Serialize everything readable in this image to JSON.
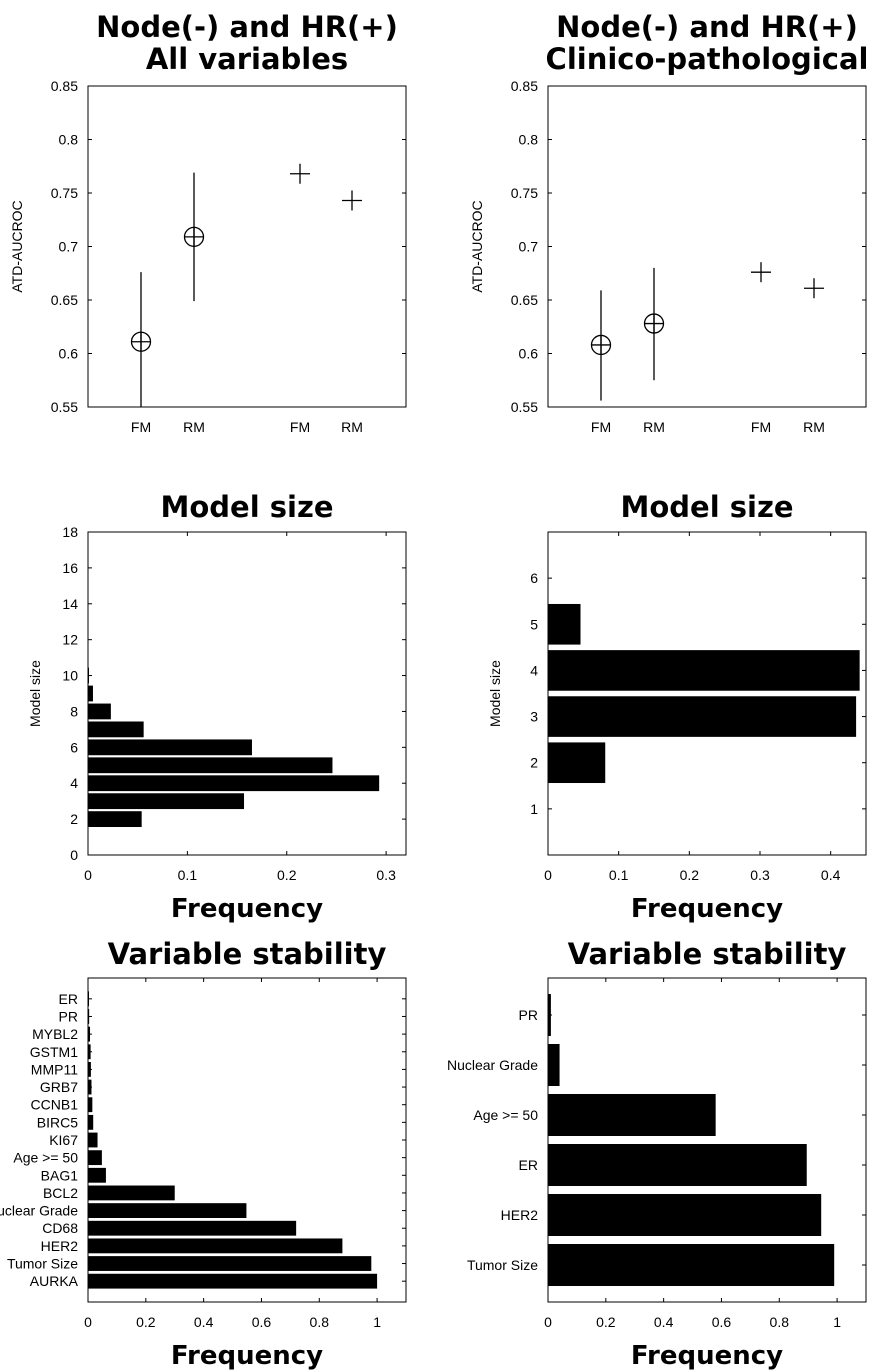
{
  "chart_data": [
    {
      "type": "scatter",
      "title": [
        "Node(-) and HR(+)",
        "All variables"
      ],
      "ylabel": "ATD-AUCROC",
      "xlabel": "",
      "ylim": [
        0.55,
        0.85
      ],
      "yticks": [
        "0.55",
        "0.6",
        "0.65",
        "0.7",
        "0.75",
        "0.8",
        "0.85"
      ],
      "categories": [
        "FM",
        "RM",
        "FM",
        "RM"
      ],
      "points": [
        {
          "label": "FM",
          "y": 0.611,
          "low": 0.55,
          "high": 0.676,
          "marker": "circle-plus"
        },
        {
          "label": "RM",
          "y": 0.709,
          "low": 0.649,
          "high": 0.769,
          "marker": "circle-plus"
        },
        {
          "label": "FM",
          "y": 0.768,
          "marker": "plus"
        },
        {
          "label": "RM",
          "y": 0.743,
          "marker": "plus"
        }
      ]
    },
    {
      "type": "scatter",
      "title": [
        "Node(-) and HR(+)",
        "Clinico-pathological"
      ],
      "ylabel": "ATD-AUCROC",
      "xlabel": "",
      "ylim": [
        0.55,
        0.85
      ],
      "yticks": [
        "0.55",
        "0.6",
        "0.65",
        "0.7",
        "0.75",
        "0.8",
        "0.85"
      ],
      "categories": [
        "FM",
        "RM",
        "FM",
        "RM"
      ],
      "points": [
        {
          "label": "FM",
          "y": 0.608,
          "low": 0.556,
          "high": 0.659,
          "marker": "circle-plus"
        },
        {
          "label": "RM",
          "y": 0.628,
          "low": 0.575,
          "high": 0.68,
          "marker": "circle-plus"
        },
        {
          "label": "FM",
          "y": 0.676,
          "marker": "plus"
        },
        {
          "label": "RM",
          "y": 0.661,
          "marker": "plus"
        }
      ]
    },
    {
      "type": "bar",
      "orientation": "horizontal",
      "title": "Model size",
      "xlabel": "Frequency",
      "ylabel": "Model size",
      "xlim": [
        0,
        0.32
      ],
      "ylim": [
        0,
        18
      ],
      "xticks": [
        "0",
        "0.1",
        "0.2",
        "0.3"
      ],
      "yticks": [
        "0",
        "2",
        "4",
        "6",
        "8",
        "10",
        "12",
        "14",
        "16",
        "18"
      ],
      "categories": [
        2,
        3,
        4,
        5,
        6,
        7,
        8,
        9,
        10
      ],
      "values": [
        0.054,
        0.157,
        0.293,
        0.246,
        0.165,
        0.056,
        0.023,
        0.005,
        0.001
      ]
    },
    {
      "type": "bar",
      "orientation": "horizontal",
      "title": "Model size",
      "xlabel": "Frequency",
      "ylabel": "Model size",
      "xlim": [
        0,
        0.45
      ],
      "ylim": [
        0,
        7
      ],
      "xticks": [
        "0",
        "0.1",
        "0.2",
        "0.3",
        "0.4"
      ],
      "yticks": [
        "1",
        "2",
        "3",
        "4",
        "5",
        "6"
      ],
      "categories": [
        2,
        3,
        4,
        5
      ],
      "values": [
        0.081,
        0.436,
        0.441,
        0.046
      ]
    },
    {
      "type": "bar",
      "orientation": "horizontal",
      "title": "Variable stability",
      "xlabel": "Frequency",
      "xlim": [
        0,
        1.1
      ],
      "xticks": [
        "0",
        "0.2",
        "0.4",
        "0.6",
        "0.8",
        "1"
      ],
      "categories": [
        "ER",
        "PR",
        "MYBL2",
        "GSTM1",
        "MMP11",
        "GRB7",
        "CCNB1",
        "BIRC5",
        "KI67",
        "Age >= 50",
        "BAG1",
        "BCL2",
        "Nuclear Grade",
        "CD68",
        "HER2",
        "Tumor Size",
        "AURKA"
      ],
      "values": [
        0.002,
        0.004,
        0.007,
        0.009,
        0.01,
        0.012,
        0.015,
        0.018,
        0.033,
        0.048,
        0.062,
        0.3,
        0.548,
        0.72,
        0.88,
        0.98,
        1.0
      ]
    },
    {
      "type": "bar",
      "orientation": "horizontal",
      "title": "Variable stability",
      "xlabel": "Frequency",
      "xlim": [
        0,
        1.1
      ],
      "xticks": [
        "0",
        "0.2",
        "0.4",
        "0.6",
        "0.8",
        "1"
      ],
      "categories": [
        "PR",
        "Nuclear Grade",
        "Age >= 50",
        "ER",
        "HER2",
        "Tumor Size"
      ],
      "values": [
        0.01,
        0.04,
        0.58,
        0.895,
        0.945,
        0.99
      ]
    }
  ]
}
